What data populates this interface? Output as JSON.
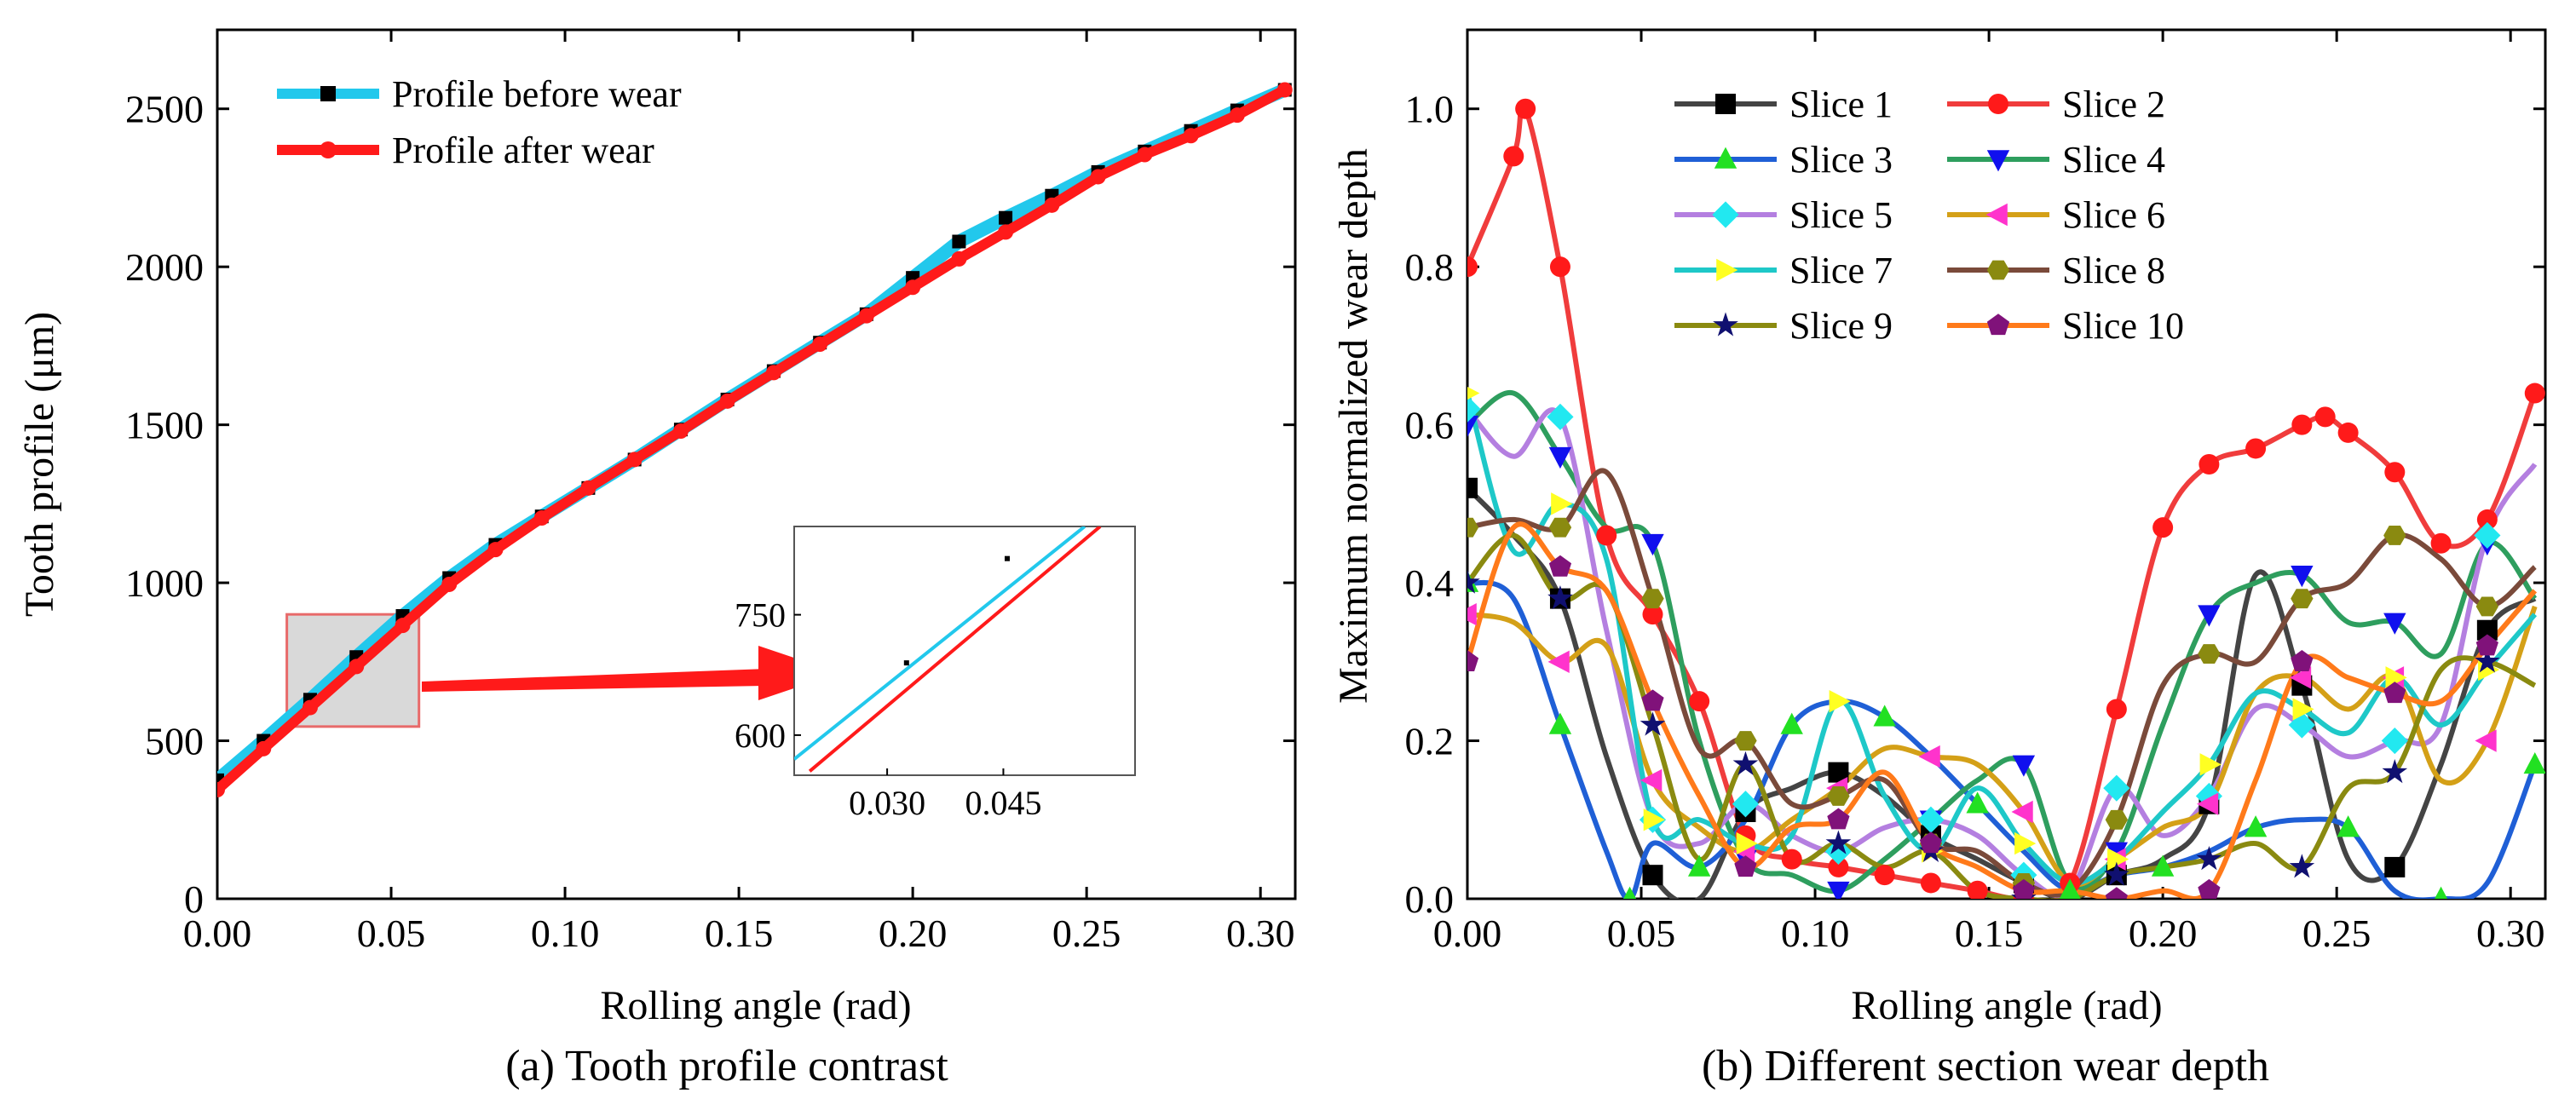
{
  "chart_data": [
    {
      "type": "line",
      "caption": "(a) Tooth profile contrast",
      "xlabel": "Rolling angle (rad)",
      "ylabel": "Tooth profile (μm)",
      "xlim": [
        0,
        0.31
      ],
      "ylim": [
        0,
        2750
      ],
      "xticks": [
        0.0,
        0.05,
        0.1,
        0.15,
        0.2,
        0.25,
        0.3
      ],
      "xtick_labels": [
        "0.00",
        "0.05",
        "0.10",
        "0.15",
        "0.20",
        "0.25",
        "0.30"
      ],
      "yticks": [
        0,
        500,
        1000,
        1500,
        2000,
        2500
      ],
      "ytick_labels": [
        "0",
        "500",
        "1000",
        "1500",
        "2000",
        "2500"
      ],
      "legend": "top-left",
      "series": [
        {
          "name": "Profile before wear",
          "color": "#22c8ec",
          "marker": "square",
          "marker_color": "#000000",
          "x": [
            0.0,
            0.0133,
            0.0267,
            0.04,
            0.0533,
            0.0667,
            0.08,
            0.0933,
            0.1067,
            0.12,
            0.1333,
            0.1467,
            0.16,
            0.1733,
            0.1867,
            0.2,
            0.2133,
            0.2267,
            0.24,
            0.2533,
            0.2667,
            0.28,
            0.2933,
            0.307
          ],
          "y": [
            375,
            500,
            630,
            765,
            895,
            1015,
            1120,
            1210,
            1300,
            1390,
            1485,
            1580,
            1670,
            1760,
            1850,
            1965,
            2080,
            2155,
            2225,
            2300,
            2365,
            2430,
            2495,
            2560
          ]
        },
        {
          "name": "Profile after wear",
          "color": "#ff1a1a",
          "marker": "circle",
          "marker_color": "#ff1a1a",
          "x": [
            0.0,
            0.0133,
            0.0267,
            0.04,
            0.0533,
            0.0667,
            0.08,
            0.0933,
            0.1067,
            0.12,
            0.1333,
            0.1467,
            0.16,
            0.1733,
            0.1867,
            0.2,
            0.2133,
            0.2267,
            0.24,
            0.2533,
            0.2667,
            0.28,
            0.2933,
            0.307
          ],
          "y": [
            345,
            475,
            605,
            735,
            865,
            995,
            1105,
            1205,
            1300,
            1390,
            1480,
            1575,
            1665,
            1755,
            1845,
            1935,
            2025,
            2110,
            2195,
            2285,
            2355,
            2415,
            2480,
            2560
          ]
        }
      ],
      "inset": {
        "xlim": [
          0.018,
          0.062
        ],
        "ylim": [
          550,
          860
        ],
        "xticks": [
          0.03,
          0.045
        ],
        "xtick_labels": [
          "0.030",
          "0.045"
        ],
        "yticks": [
          600,
          750
        ],
        "ytick_labels": [
          "600",
          "750"
        ],
        "zoom_region": {
          "x": [
            0.02,
            0.058
          ],
          "y": [
            545,
            900
          ]
        },
        "before_line": {
          "x": [
            0.018,
            0.0555
          ],
          "y": [
            570,
            860
          ]
        },
        "after_line": {
          "x": [
            0.02,
            0.0575
          ],
          "y": [
            555,
            860
          ]
        }
      }
    },
    {
      "type": "line",
      "caption": "(b) Different section wear depth",
      "xlabel": "Rolling angle (rad)",
      "ylabel": "Maximum normalized wear depth",
      "xlim": [
        0,
        0.31
      ],
      "ylim": [
        0,
        1.1
      ],
      "xticks": [
        0.0,
        0.05,
        0.1,
        0.15,
        0.2,
        0.25,
        0.3
      ],
      "xtick_labels": [
        "0.00",
        "0.05",
        "0.10",
        "0.15",
        "0.20",
        "0.25",
        "0.30"
      ],
      "yticks": [
        0,
        0.2,
        0.4,
        0.6,
        0.8,
        1.0
      ],
      "ytick_labels": [
        "0.0",
        "0.2",
        "0.4",
        "0.6",
        "0.8",
        "1.0"
      ],
      "legend": "top-center, two columns",
      "series": [
        {
          "name": "Slice 1",
          "color": "#444444",
          "marker": "square",
          "marker_color": "#000000",
          "x": [
            0,
            0.0133,
            0.0267,
            0.04,
            0.0533,
            0.0667,
            0.08,
            0.0933,
            0.1067,
            0.12,
            0.1333,
            0.1467,
            0.16,
            0.1733,
            0.1867,
            0.2,
            0.2133,
            0.2267,
            0.24,
            0.2533,
            0.2667,
            0.28,
            0.2933,
            0.307
          ],
          "y": [
            0.52,
            0.46,
            0.38,
            0.18,
            0.03,
            0.0,
            0.11,
            0.14,
            0.16,
            0.13,
            0.08,
            0.05,
            0.02,
            0.0,
            0.03,
            0.05,
            0.12,
            0.41,
            0.27,
            0.05,
            0.04,
            0.17,
            0.34,
            0.38
          ]
        },
        {
          "name": "Slice 2",
          "color": "#f03c3c",
          "marker": "circle",
          "marker_color": "#ff1a1a",
          "x": [
            0,
            0.0133,
            0.0167,
            0.0267,
            0.04,
            0.0533,
            0.0667,
            0.08,
            0.0933,
            0.1067,
            0.12,
            0.1333,
            0.1467,
            0.16,
            0.1733,
            0.1867,
            0.2,
            0.2133,
            0.2267,
            0.24,
            0.2467,
            0.2533,
            0.2667,
            0.28,
            0.2933,
            0.307
          ],
          "y": [
            0.8,
            0.94,
            1.0,
            0.8,
            0.46,
            0.36,
            0.25,
            0.08,
            0.05,
            0.04,
            0.03,
            0.02,
            0.01,
            0.0,
            0.02,
            0.24,
            0.47,
            0.55,
            0.57,
            0.6,
            0.61,
            0.59,
            0.54,
            0.45,
            0.48,
            0.64
          ]
        },
        {
          "name": "Slice 3",
          "color": "#1f5fd6",
          "marker": "triangle-up",
          "marker_color": "#22e022",
          "x": [
            0,
            0.0133,
            0.0267,
            0.04,
            0.0467,
            0.0533,
            0.0667,
            0.08,
            0.0933,
            0.1067,
            0.12,
            0.1333,
            0.1467,
            0.16,
            0.1733,
            0.1867,
            0.2,
            0.2133,
            0.2267,
            0.24,
            0.2533,
            0.2667,
            0.28,
            0.2933,
            0.307
          ],
          "y": [
            0.4,
            0.38,
            0.22,
            0.06,
            0.0,
            0.07,
            0.04,
            0.1,
            0.22,
            0.25,
            0.23,
            0.18,
            0.12,
            0.06,
            0.01,
            0.03,
            0.04,
            0.06,
            0.09,
            0.1,
            0.09,
            0.01,
            0.0,
            0.02,
            0.17
          ]
        },
        {
          "name": "Slice 4",
          "color": "#2e9e5e",
          "marker": "triangle-down",
          "marker_color": "#1010ee",
          "x": [
            0,
            0.0133,
            0.0267,
            0.04,
            0.0533,
            0.0667,
            0.08,
            0.0933,
            0.1067,
            0.12,
            0.1333,
            0.1467,
            0.16,
            0.1733,
            0.1867,
            0.2,
            0.2133,
            0.2267,
            0.24,
            0.2533,
            0.2667,
            0.28,
            0.2933,
            0.307
          ],
          "y": [
            0.6,
            0.64,
            0.56,
            0.47,
            0.45,
            0.2,
            0.05,
            0.03,
            0.01,
            0.05,
            0.1,
            0.15,
            0.17,
            0.02,
            0.06,
            0.22,
            0.36,
            0.4,
            0.41,
            0.35,
            0.35,
            0.31,
            0.45,
            0.38
          ]
        },
        {
          "name": "Slice 5",
          "color": "#b47fe0",
          "marker": "diamond",
          "marker_color": "#22e8f0",
          "x": [
            0,
            0.0133,
            0.0267,
            0.04,
            0.0533,
            0.0667,
            0.08,
            0.0933,
            0.1067,
            0.12,
            0.1333,
            0.1467,
            0.16,
            0.1733,
            0.1867,
            0.2,
            0.2133,
            0.2267,
            0.24,
            0.2533,
            0.2667,
            0.28,
            0.2933,
            0.307
          ],
          "y": [
            0.62,
            0.56,
            0.61,
            0.34,
            0.1,
            0.07,
            0.12,
            0.08,
            0.06,
            0.09,
            0.1,
            0.08,
            0.03,
            0.01,
            0.14,
            0.08,
            0.13,
            0.24,
            0.22,
            0.18,
            0.2,
            0.22,
            0.46,
            0.55
          ]
        },
        {
          "name": "Slice 6",
          "color": "#d4a017",
          "marker": "triangle-left",
          "marker_color": "#ff33cc",
          "x": [
            0,
            0.0133,
            0.0267,
            0.04,
            0.0533,
            0.0667,
            0.08,
            0.0933,
            0.1067,
            0.12,
            0.1333,
            0.1467,
            0.16,
            0.1733,
            0.1867,
            0.2,
            0.2133,
            0.2267,
            0.24,
            0.2533,
            0.2667,
            0.28,
            0.2933,
            0.307
          ],
          "y": [
            0.36,
            0.35,
            0.3,
            0.32,
            0.15,
            0.09,
            0.06,
            0.1,
            0.14,
            0.19,
            0.18,
            0.17,
            0.11,
            0.02,
            0.05,
            0.09,
            0.12,
            0.26,
            0.28,
            0.24,
            0.28,
            0.15,
            0.2,
            0.37
          ]
        },
        {
          "name": "Slice 7",
          "color": "#1ec8c8",
          "marker": "triangle-right",
          "marker_color": "#ffff22",
          "x": [
            0,
            0.0133,
            0.0267,
            0.04,
            0.0533,
            0.0667,
            0.08,
            0.0933,
            0.1067,
            0.12,
            0.1333,
            0.1467,
            0.16,
            0.1733,
            0.1867,
            0.2,
            0.2133,
            0.2267,
            0.24,
            0.2533,
            0.2667,
            0.28,
            0.2933,
            0.307
          ],
          "y": [
            0.64,
            0.44,
            0.5,
            0.43,
            0.1,
            0.1,
            0.07,
            0.08,
            0.25,
            0.13,
            0.06,
            0.14,
            0.07,
            0.02,
            0.05,
            0.11,
            0.17,
            0.26,
            0.24,
            0.21,
            0.28,
            0.22,
            0.29,
            0.36
          ]
        },
        {
          "name": "Slice 8",
          "color": "#7a4a3a",
          "marker": "hexagon",
          "marker_color": "#8a8a10",
          "x": [
            0,
            0.0133,
            0.0267,
            0.04,
            0.0533,
            0.0667,
            0.08,
            0.0933,
            0.1067,
            0.12,
            0.1333,
            0.1467,
            0.16,
            0.1733,
            0.1867,
            0.2,
            0.2133,
            0.2267,
            0.24,
            0.2533,
            0.2667,
            0.28,
            0.2933,
            0.307
          ],
          "y": [
            0.47,
            0.48,
            0.47,
            0.54,
            0.38,
            0.19,
            0.2,
            0.12,
            0.13,
            0.15,
            0.07,
            0.06,
            0.02,
            0.01,
            0.1,
            0.27,
            0.31,
            0.3,
            0.38,
            0.4,
            0.46,
            0.43,
            0.37,
            0.42
          ]
        },
        {
          "name": "Slice 9",
          "color": "#8a8a10",
          "marker": "star",
          "marker_color": "#101070",
          "x": [
            0,
            0.0133,
            0.0267,
            0.04,
            0.0533,
            0.0667,
            0.08,
            0.0933,
            0.1067,
            0.12,
            0.1333,
            0.1467,
            0.16,
            0.1733,
            0.1867,
            0.2,
            0.2133,
            0.2267,
            0.24,
            0.2533,
            0.2667,
            0.28,
            0.2933,
            0.307
          ],
          "y": [
            0.4,
            0.46,
            0.38,
            0.39,
            0.22,
            0.05,
            0.17,
            0.05,
            0.07,
            0.04,
            0.06,
            0.01,
            0.0,
            0.0,
            0.03,
            0.04,
            0.05,
            0.07,
            0.04,
            0.14,
            0.16,
            0.29,
            0.3,
            0.27
          ]
        },
        {
          "name": "Slice 10",
          "color": "#ff7a1a",
          "marker": "pentagon",
          "marker_color": "#80127a",
          "x": [
            0,
            0.0133,
            0.0267,
            0.04,
            0.0533,
            0.0667,
            0.08,
            0.0933,
            0.1067,
            0.12,
            0.1333,
            0.1467,
            0.16,
            0.1733,
            0.1867,
            0.2,
            0.2133,
            0.2267,
            0.24,
            0.2533,
            0.2667,
            0.28,
            0.2933,
            0.307
          ],
          "y": [
            0.3,
            0.47,
            0.42,
            0.39,
            0.25,
            0.13,
            0.04,
            0.09,
            0.1,
            0.16,
            0.07,
            0.04,
            0.01,
            0.01,
            0.0,
            0.01,
            0.01,
            0.15,
            0.3,
            0.28,
            0.26,
            0.25,
            0.32,
            0.39
          ]
        }
      ]
    }
  ]
}
